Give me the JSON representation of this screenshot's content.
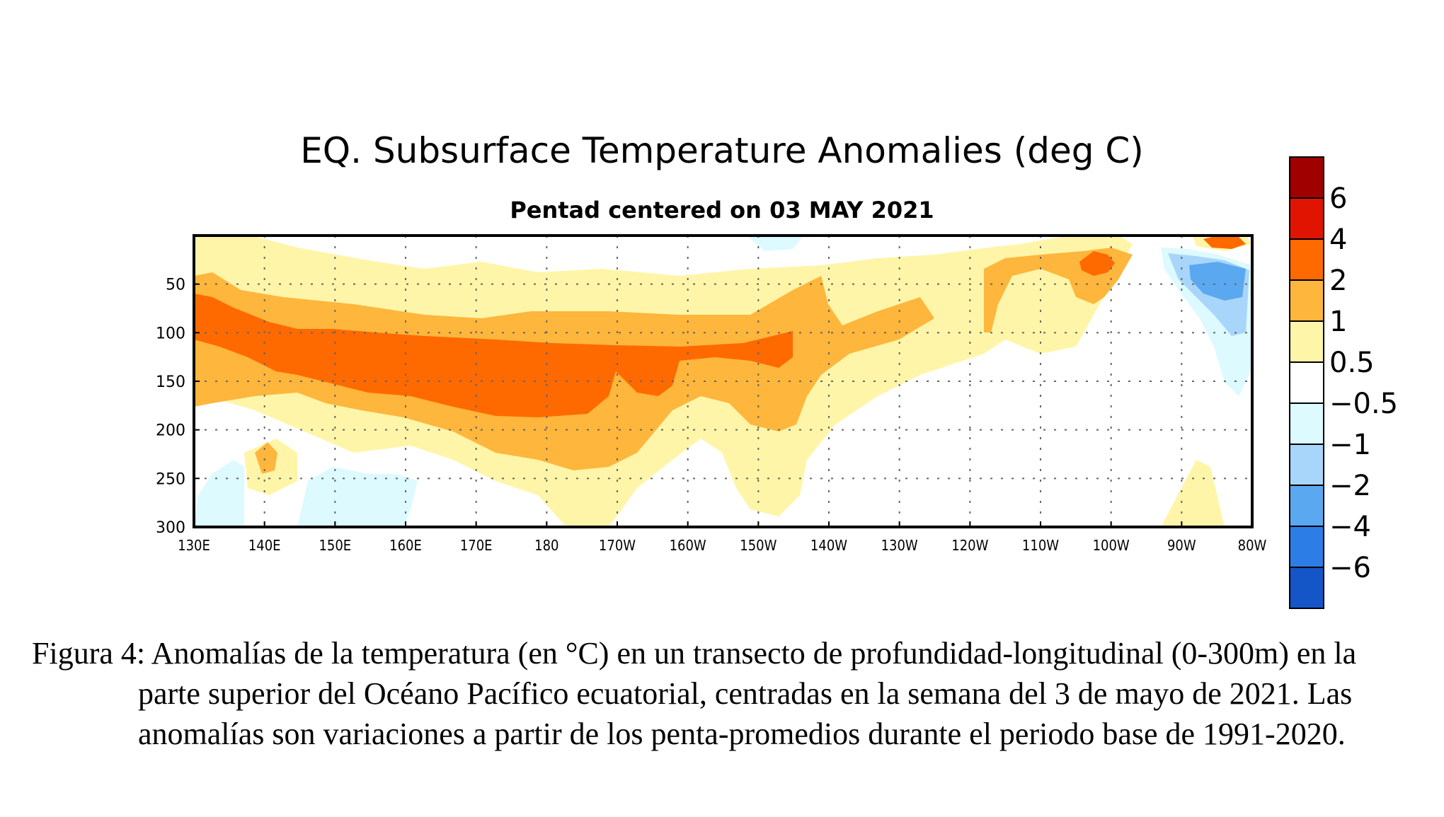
{
  "chart_data": {
    "type": "heatmap",
    "title": "EQ. Subsurface Temperature Anomalies (deg C)",
    "subtitle": "Pentad centered on 03 MAY 2021",
    "x_ticks": [
      "130E",
      "140E",
      "150E",
      "160E",
      "170E",
      "180",
      "170W",
      "160W",
      "150W",
      "140W",
      "130W",
      "120W",
      "110W",
      "100W",
      "90W",
      "80W"
    ],
    "y_ticks": [
      "50",
      "100",
      "150",
      "200",
      "250",
      "300"
    ],
    "y_tick_values": [
      50,
      100,
      150,
      200,
      250,
      300
    ],
    "x_range_deg_east": [
      130,
      280
    ],
    "y_range_m": [
      0,
      300
    ],
    "grid": true,
    "colorbar": {
      "labels": [
        "6",
        "4",
        "2",
        "1",
        "0.5",
        "−0.5",
        "−1",
        "−2",
        "−4",
        "−6"
      ],
      "colors": [
        "#a00000",
        "#e01400",
        "#ff6a00",
        "#ffb63c",
        "#fff5a8",
        "#ffffff",
        "#dcfaff",
        "#a8d6fa",
        "#5aa8f0",
        "#2d7de6",
        "#1455c8"
      ]
    },
    "features": [
      {
        "level": "2 to 4",
        "location": "130E-147W",
        "depth_m": "75-190"
      },
      {
        "level": "1 to 2",
        "location": "130E-135W",
        "depth_m": "50-240"
      },
      {
        "level": "2 to 4",
        "location": "103W-98W",
        "depth_m": "20-55"
      },
      {
        "level": "2 to 4",
        "location": "85W-81W",
        "depth_m": "0-20"
      },
      {
        "level": "-2 to -1",
        "location": "90W-81W",
        "depth_m": "30-110"
      }
    ]
  },
  "caption": "Figura 4: Anomalías de la temperatura (en °C) en un transecto de profundidad-longitudinal (0-300m) en la parte superior del Océano Pacífico ecuatorial, centradas en la semana del 3 de mayo de 2021. Las anomalías son variaciones a partir de los penta-promedios durante el periodo base de 1991-2020."
}
